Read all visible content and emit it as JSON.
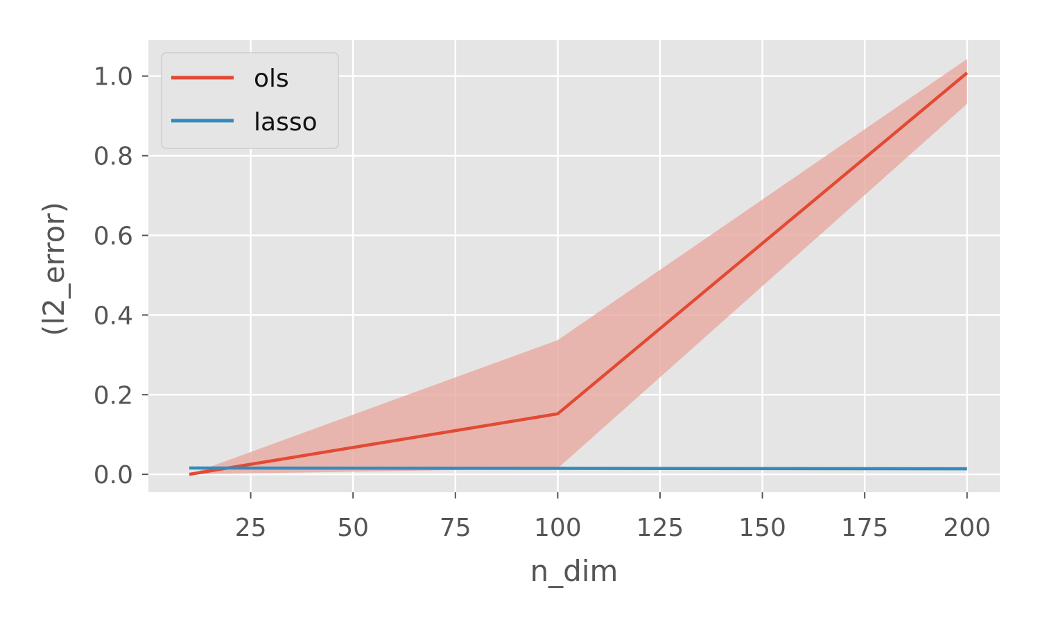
{
  "chart_data": {
    "type": "line",
    "title": "",
    "xlabel": "n_dim",
    "ylabel": "(l2_error)",
    "xlim": [
      0,
      208
    ],
    "ylim": [
      -0.045,
      1.09
    ],
    "xticks": [
      25,
      50,
      75,
      100,
      125,
      150,
      175,
      200
    ],
    "xtick_labels": [
      "25",
      "50",
      "75",
      "100",
      "125",
      "150",
      "175",
      "200"
    ],
    "yticks": [
      0.0,
      0.2,
      0.4,
      0.6,
      0.8,
      1.0
    ],
    "ytick_labels": [
      "0.0",
      "0.2",
      "0.4",
      "0.6",
      "0.8",
      "1.0"
    ],
    "grid": true,
    "legend_position": "top-left",
    "background_color": "#e5e5e5",
    "grid_color": "#ffffff",
    "series": [
      {
        "name": "ols",
        "color": "#e24a33",
        "x": [
          10,
          100,
          200
        ],
        "y": [
          0.0,
          0.152,
          1.008
        ],
        "band_lower": [
          0.0,
          0.015,
          0.93
        ],
        "band_upper": [
          0.0,
          0.337,
          1.043
        ],
        "band_color": "#e8a9a0"
      },
      {
        "name": "lasso",
        "color": "#348abd",
        "x": [
          10,
          100,
          200
        ],
        "y": [
          0.016,
          0.015,
          0.014
        ]
      }
    ]
  }
}
